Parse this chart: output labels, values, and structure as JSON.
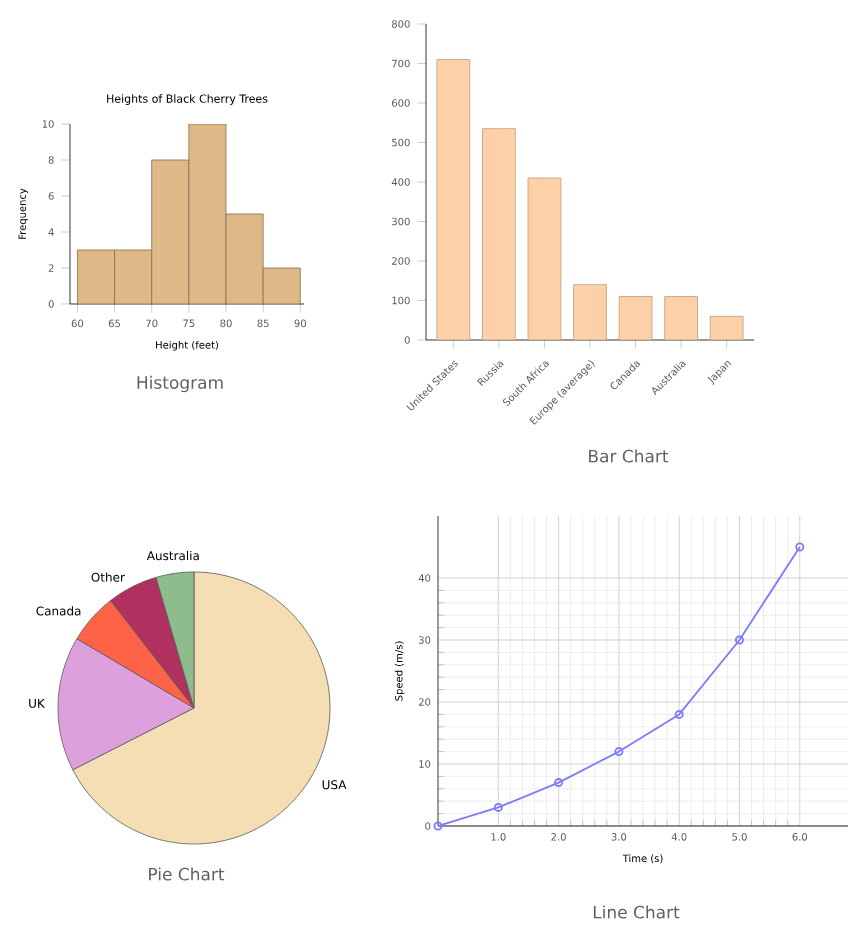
{
  "chart_data": [
    {
      "type": "histogram",
      "title": "Heights of Black Cherry Trees",
      "xlabel": "Height (feet)",
      "ylabel": "Frequency",
      "bins": [
        60,
        65,
        70,
        75,
        80,
        85,
        90
      ],
      "values": [
        3,
        3,
        8,
        10,
        5,
        2
      ],
      "color": "#deb887",
      "xlim": [
        59,
        90.5
      ],
      "ylim": [
        0,
        10
      ],
      "xticks": [
        60,
        65,
        70,
        75,
        80,
        85,
        90
      ],
      "yticks": [
        0,
        2,
        4,
        6,
        8,
        10
      ],
      "annotations": [
        "Histogram"
      ]
    },
    {
      "type": "bar",
      "categories": [
        "United States",
        "Russia",
        "South Africa",
        "Europe (average)",
        "Canada",
        "Australia",
        "Japan"
      ],
      "values": [
        710,
        535,
        410,
        140,
        110,
        110,
        60
      ],
      "color": "#fdd0a8",
      "ylim": [
        0,
        800
      ],
      "yticks": [
        0,
        100,
        200,
        300,
        400,
        500,
        600,
        700,
        800
      ],
      "annotations": [
        "Bar Chart"
      ]
    },
    {
      "type": "pie",
      "categories": [
        "USA",
        "UK",
        "Canada",
        "Other",
        "Australia"
      ],
      "values": [
        67.5,
        16,
        6,
        6,
        4.5
      ],
      "colors": [
        "#f5deb3",
        "#dda0dd",
        "#ff6347",
        "#b03060",
        "#8fbc8f"
      ],
      "annotations": [
        "Pie Chart"
      ]
    },
    {
      "type": "line",
      "xlabel": "Time (s)",
      "ylabel": "Speed (m/s)",
      "x": [
        0,
        1,
        2,
        3,
        4,
        5,
        6
      ],
      "values": [
        0,
        3,
        7,
        12,
        18,
        30,
        45
      ],
      "color": "#7b7bff",
      "marker": "circle",
      "line_style": "solid",
      "grid": true,
      "xlim": [
        0,
        6.8
      ],
      "ylim": [
        0,
        50
      ],
      "xticks": [
        {
          "value": 1,
          "label": "1.0"
        },
        {
          "value": 2,
          "label": "2.0"
        },
        {
          "value": 3,
          "label": "3.0"
        },
        {
          "value": 4,
          "label": "4.0"
        },
        {
          "value": 5,
          "label": "5.0"
        },
        {
          "value": 6,
          "label": "6.0"
        }
      ],
      "yticks": [
        0,
        10,
        20,
        30,
        40
      ],
      "annotations": [
        "Line Chart"
      ]
    }
  ]
}
